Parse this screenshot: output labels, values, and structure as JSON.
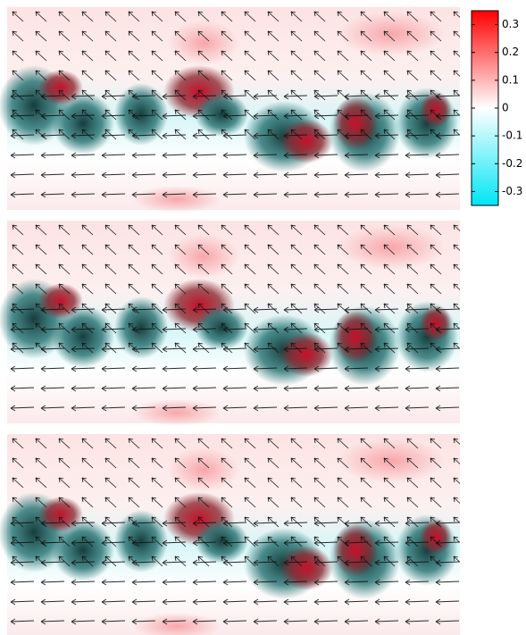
{
  "chart_data": {
    "type": "heatmap",
    "colorbar": {
      "lim": [
        -0.35,
        0.35
      ],
      "ticks": [
        0.3,
        0.2,
        0.1,
        0,
        -0.1,
        -0.2,
        -0.3
      ],
      "colormap": [
        "#00e5f5",
        "#ffffff",
        "#ff0000"
      ]
    }
  }
}
